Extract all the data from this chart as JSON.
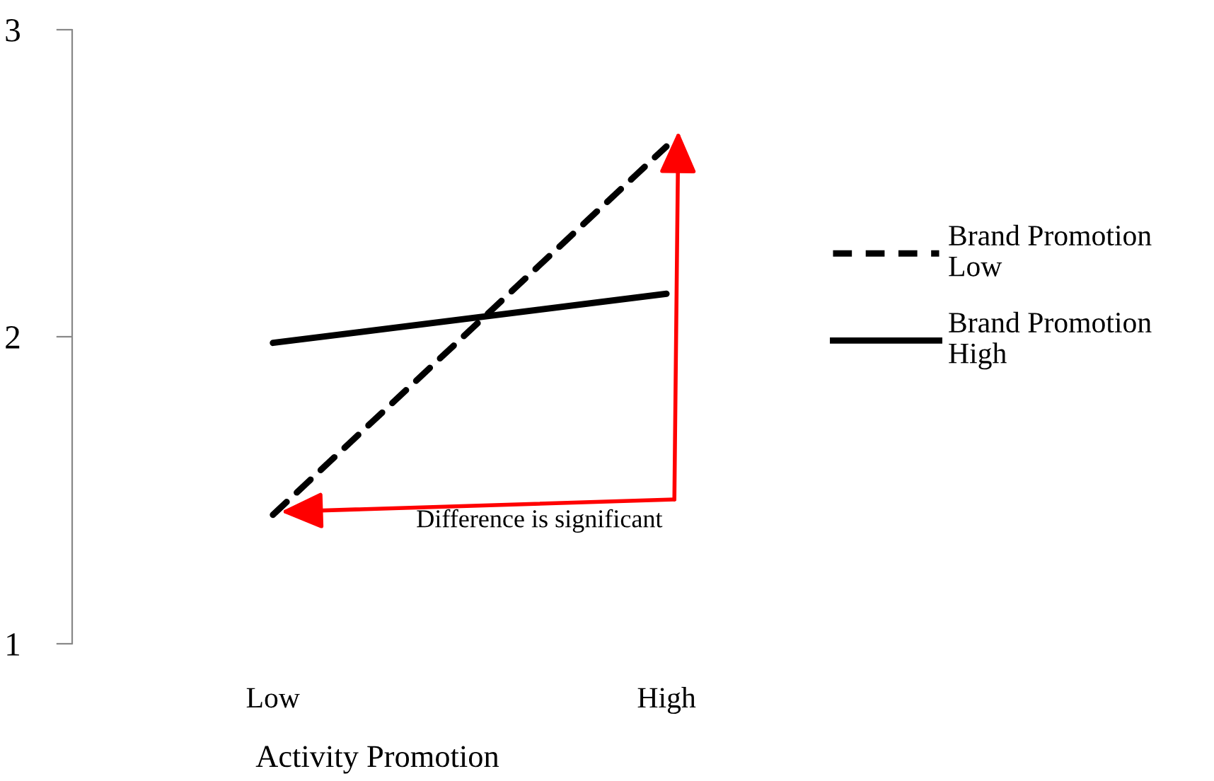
{
  "chart_data": {
    "type": "line",
    "xlabel": "Activity Promotion",
    "categories": [
      "Low",
      "High"
    ],
    "series": [
      {
        "name": "Brand Promotion Low",
        "color": "#000000",
        "line_style": "dashed",
        "values": [
          1.42,
          2.62
        ]
      },
      {
        "name": "Brand Promotion High",
        "color": "#000000",
        "line_style": "solid",
        "values": [
          1.98,
          2.14
        ]
      }
    ],
    "ylim": [
      1,
      3
    ],
    "yticks": [
      1,
      2,
      3
    ],
    "grid": false,
    "legend": "right",
    "marker": "none",
    "annotations": [
      "Difference is significant"
    ]
  }
}
